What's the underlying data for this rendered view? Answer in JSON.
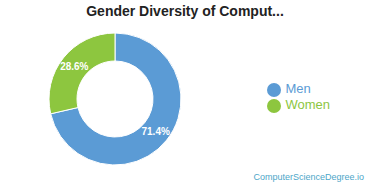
{
  "chart_data": {
    "type": "pie",
    "title": "Gender Diversity of Comput...",
    "categories": [
      "Men",
      "Women"
    ],
    "values": [
      71.4,
      28.6
    ],
    "value_labels": [
      "71.4%",
      "28.6%"
    ],
    "data_labels": true,
    "colors": [
      "#5b9bd5",
      "#8dc63f"
    ],
    "legend": "right",
    "annotations": [
      {
        "text": "ComputerScienceDegree.io",
        "color": "#4da6c8"
      }
    ]
  }
}
